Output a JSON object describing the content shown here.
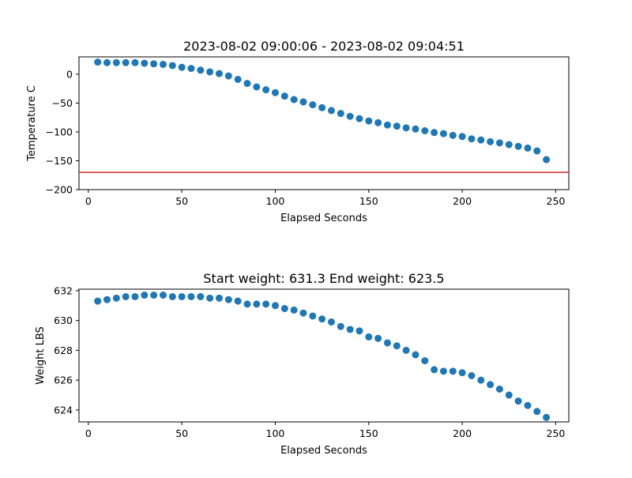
{
  "chart_data": [
    {
      "type": "scatter",
      "title": "2023-08-02 09:00:06 - 2023-08-02 09:04:51",
      "xlabel": "Elapsed Seconds",
      "ylabel": "Temperature C",
      "xlim": [
        -5,
        257
      ],
      "ylim": [
        -200,
        30
      ],
      "xticks": [
        0,
        50,
        100,
        150,
        200,
        250
      ],
      "yticks": [
        -200,
        -150,
        -100,
        -50,
        0
      ],
      "grid": false,
      "marker_color": "#1f77b4",
      "hline": {
        "y": -170,
        "color": "#d62728"
      },
      "series": [
        {
          "x": [
            5,
            10,
            15,
            20,
            25,
            30,
            35,
            40,
            45,
            50,
            55,
            60,
            65,
            70,
            75,
            80,
            85,
            90,
            95,
            100,
            105,
            110,
            115,
            120,
            125,
            130,
            135,
            140,
            145,
            150,
            155,
            160,
            165,
            170,
            175,
            180,
            185,
            190,
            195,
            200,
            205,
            210,
            215,
            220,
            225,
            230,
            235,
            240,
            245
          ],
          "y": [
            21,
            20,
            20,
            20,
            20,
            19,
            18,
            17,
            15,
            12,
            10,
            7,
            4,
            1,
            -3,
            -9,
            -16,
            -22,
            -27,
            -32,
            -38,
            -44,
            -48,
            -53,
            -58,
            -63,
            -68,
            -73,
            -77,
            -81,
            -84,
            -88,
            -90,
            -93,
            -95,
            -98,
            -101,
            -103,
            -106,
            -108,
            -112,
            -114,
            -117,
            -119,
            -122,
            -125,
            -128,
            -133,
            -148
          ]
        }
      ]
    },
    {
      "type": "scatter",
      "title": "Start weight: 631.3 End weight: 623.5",
      "xlabel": "Elapsed Seconds",
      "ylabel": "Weight LBS",
      "xlim": [
        -5,
        257
      ],
      "ylim": [
        623.2,
        632.1
      ],
      "xticks": [
        0,
        50,
        100,
        150,
        200,
        250
      ],
      "yticks": [
        624,
        626,
        628,
        630,
        632
      ],
      "grid": false,
      "marker_color": "#1f77b4",
      "series": [
        {
          "x": [
            5,
            10,
            15,
            20,
            25,
            30,
            35,
            40,
            45,
            50,
            55,
            60,
            65,
            70,
            75,
            80,
            85,
            90,
            95,
            100,
            105,
            110,
            115,
            120,
            125,
            130,
            135,
            140,
            145,
            150,
            155,
            160,
            165,
            170,
            175,
            180,
            185,
            190,
            195,
            200,
            205,
            210,
            215,
            220,
            225,
            230,
            235,
            240,
            245
          ],
          "y": [
            631.3,
            631.4,
            631.5,
            631.6,
            631.6,
            631.7,
            631.7,
            631.7,
            631.6,
            631.6,
            631.6,
            631.6,
            631.5,
            631.5,
            631.4,
            631.3,
            631.1,
            631.1,
            631.1,
            631.0,
            630.8,
            630.7,
            630.5,
            630.3,
            630.1,
            629.9,
            629.6,
            629.4,
            629.3,
            628.9,
            628.8,
            628.5,
            628.3,
            628.0,
            627.7,
            627.3,
            626.7,
            626.6,
            626.6,
            626.5,
            626.3,
            626.0,
            625.7,
            625.4,
            625.0,
            624.6,
            624.3,
            623.9,
            623.5
          ]
        }
      ]
    }
  ]
}
